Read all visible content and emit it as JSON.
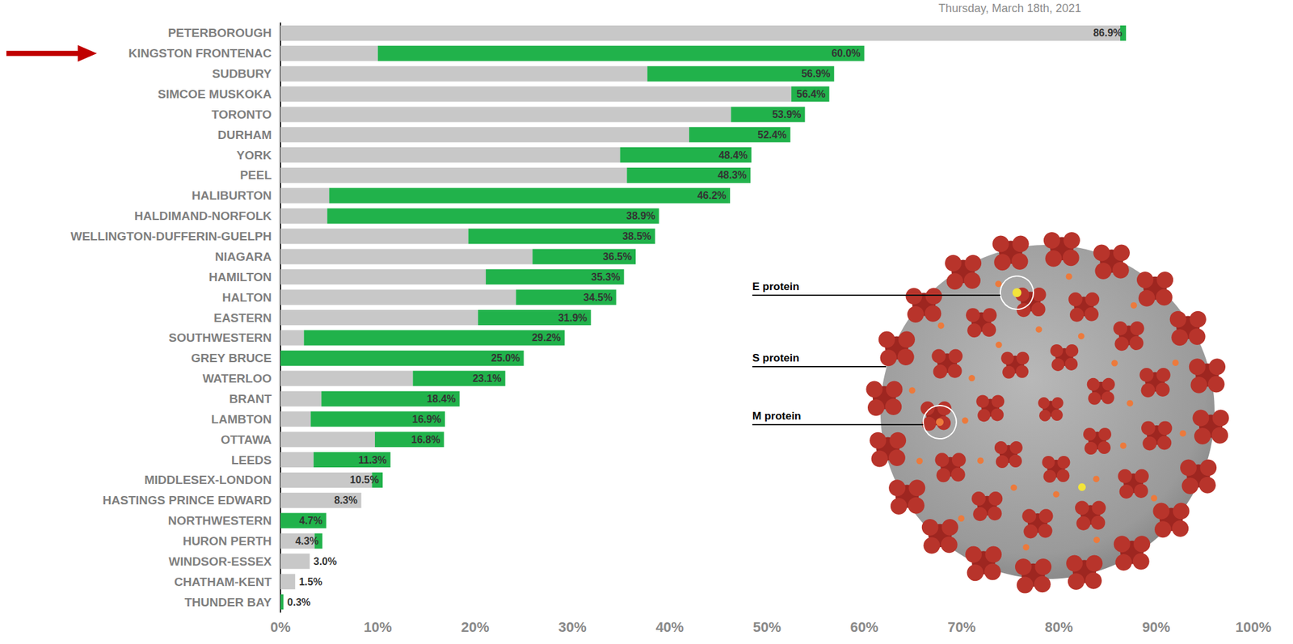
{
  "chart_data": {
    "type": "bar",
    "orientation": "horizontal",
    "stacked": true,
    "subtitle": "Thursday, March 18th, 2021",
    "categories": [
      "PETERBOROUGH",
      "KINGSTON FRONTENAC",
      "SUDBURY",
      "SIMCOE MUSKOKA",
      "TORONTO",
      "DURHAM",
      "YORK",
      "PEEL",
      "HALIBURTON",
      "HALDIMAND-NORFOLK",
      "WELLINGTON-DUFFERIN-GUELPH",
      "NIAGARA",
      "HAMILTON",
      "HALTON",
      "EASTERN",
      "SOUTHWESTERN",
      "GREY BRUCE",
      "WATERLOO",
      "BRANT",
      "LAMBTON",
      "OTTAWA",
      "LEEDS",
      "MIDDLESEX-LONDON",
      "HASTINGS PRINCE EDWARD",
      "NORTHWESTERN",
      "HURON PERTH",
      "WINDSOR-ESSEX",
      "CHATHAM-KENT",
      "THUNDER BAY"
    ],
    "series": [
      {
        "color": "#c8c8c8",
        "values": [
          86.3,
          10.0,
          37.7,
          52.5,
          46.3,
          42.0,
          34.9,
          35.6,
          5.0,
          4.8,
          19.3,
          25.9,
          21.1,
          24.2,
          20.3,
          2.4,
          0,
          13.6,
          4.2,
          3.1,
          9.7,
          3.4,
          9.4,
          8.3,
          0,
          3.5,
          3.0,
          1.5,
          0
        ]
      },
      {
        "color": "#21b24b",
        "values": [
          0.6,
          50.0,
          19.2,
          3.9,
          7.6,
          10.4,
          13.5,
          12.7,
          41.2,
          34.1,
          19.2,
          10.6,
          14.2,
          10.3,
          11.6,
          26.8,
          25.0,
          9.5,
          14.2,
          13.8,
          7.1,
          7.9,
          1.1,
          0,
          4.7,
          0.8,
          0,
          0,
          0.3
        ]
      }
    ],
    "totals": [
      86.9,
      60.0,
      56.9,
      56.4,
      53.9,
      52.4,
      48.4,
      48.3,
      46.2,
      38.9,
      38.5,
      36.5,
      35.3,
      34.5,
      31.9,
      29.2,
      25.0,
      23.1,
      18.4,
      16.9,
      16.8,
      11.3,
      10.5,
      8.3,
      4.7,
      4.3,
      3.0,
      1.5,
      0.3
    ],
    "total_labels": [
      "86.9%",
      "60.0%",
      "56.9%",
      "56.4%",
      "53.9%",
      "52.4%",
      "48.4%",
      "48.3%",
      "46.2%",
      "38.9%",
      "38.5%",
      "36.5%",
      "35.3%",
      "34.5%",
      "31.9%",
      "29.2%",
      "25.0%",
      "23.1%",
      "18.4%",
      "16.9%",
      "16.8%",
      "11.3%",
      "10.5%",
      "8.3%",
      "4.7%",
      "4.3%",
      "3.0%",
      "1.5%",
      "0.3%"
    ],
    "xlim": [
      0,
      100
    ],
    "xticks": [
      {
        "value": 0,
        "label": "0%"
      },
      {
        "value": 10,
        "label": "10%"
      },
      {
        "value": 20,
        "label": "20%"
      },
      {
        "value": 30,
        "label": "30%"
      },
      {
        "value": 40,
        "label": "40%"
      },
      {
        "value": 50,
        "label": "50%"
      },
      {
        "value": 60,
        "label": "60%"
      },
      {
        "value": 70,
        "label": "70%"
      },
      {
        "value": 80,
        "label": "80%"
      },
      {
        "value": 90,
        "label": "90%"
      },
      {
        "value": 100,
        "label": "100%"
      }
    ],
    "grid": false,
    "annotations": [
      "E protein",
      "S protein",
      "M protein"
    ]
  }
}
